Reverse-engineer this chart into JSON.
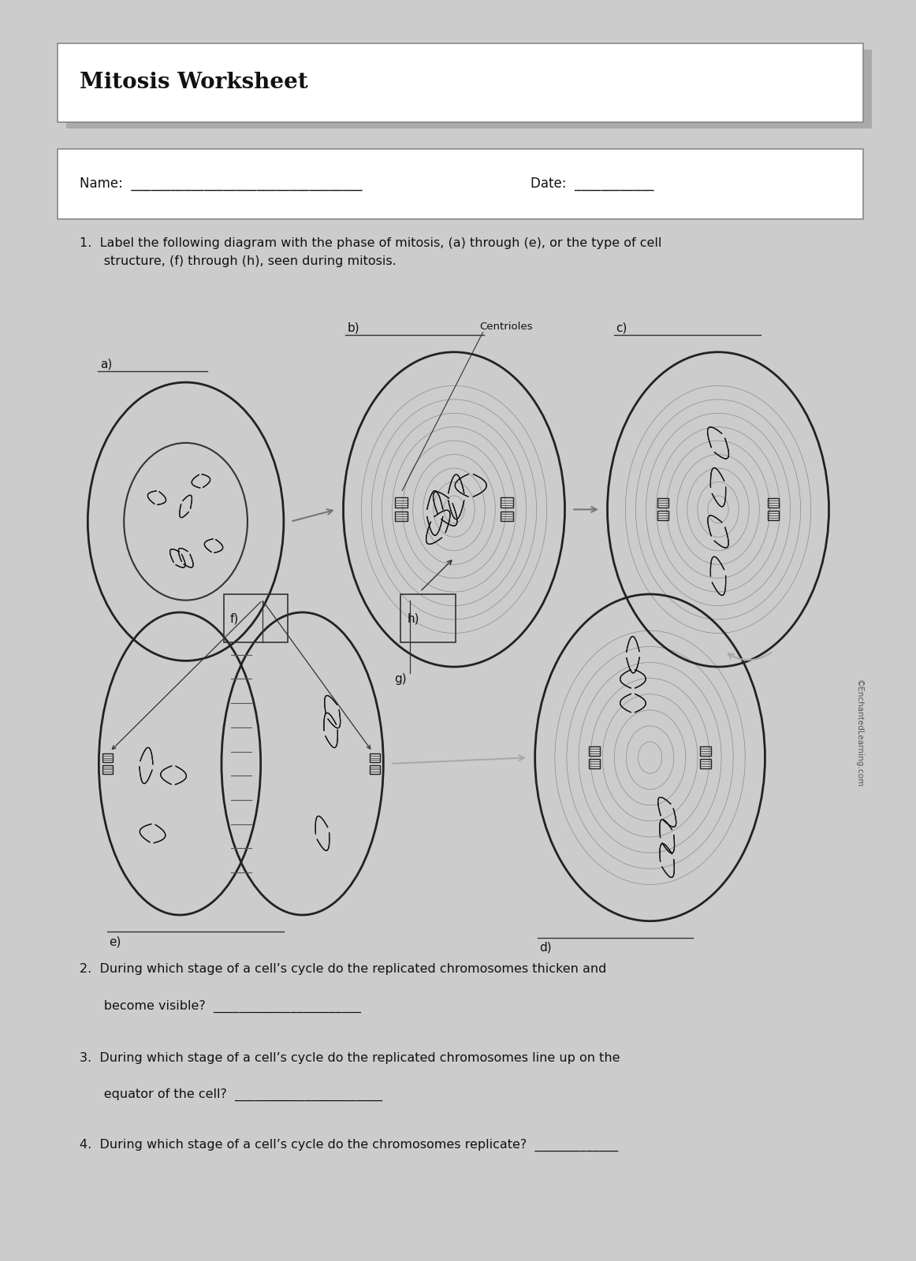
{
  "title": "Mitosis Worksheet",
  "title_fontsize": 20,
  "body_fontsize": 11,
  "small_fontsize": 9,
  "page_bg": "#f8f8f8",
  "outer_bg": "#cccccc",
  "text_color": "#111111",
  "line_color": "#333333",
  "q1": "1.  Label the following diagram with the phase of mitosis, (a) through (e), or the type of cell\n      structure, (f) through (h), seen during mitosis.",
  "q2_line1": "2.  During which stage of a cell’s cycle do the replicated chromosomes thicken and",
  "q2_line2": "      become visible?  _______________________",
  "q3_line1": "3.  During which stage of a cell’s cycle do the replicated chromosomes line up on the",
  "q3_line2": "      equator of the cell?  _______________________",
  "q4": "4.  During which stage of a cell’s cycle do the chromosomes replicate?  _____________",
  "name_line": "Name:  ___________________________________",
  "date_line": "Date:  ____________",
  "copyright": "©EnchantedLearning.com",
  "labels": [
    "a)",
    "b)",
    "c)",
    "d)",
    "e)",
    "f)",
    "g)",
    "h)"
  ],
  "centrioles": "Centrioles"
}
